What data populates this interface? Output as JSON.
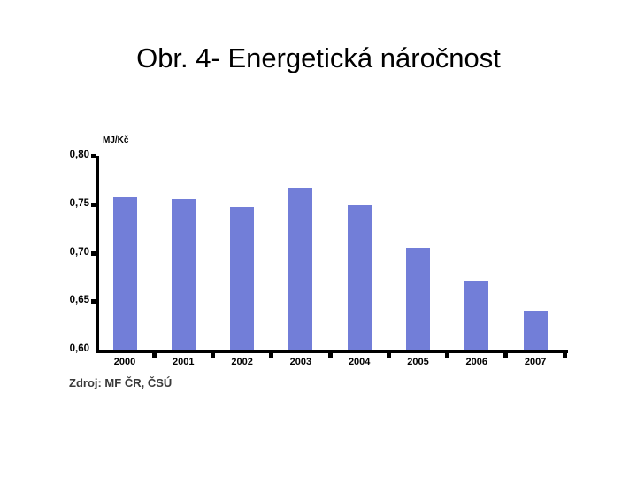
{
  "slide": {
    "title": "Obr. 4- Energetická náročnost",
    "source": "Zdroj: MF ČR, ČSÚ"
  },
  "chart_data": {
    "type": "bar",
    "title": "",
    "xlabel": "",
    "ylabel": "MJ/Kč",
    "categories": [
      "2000",
      "2001",
      "2002",
      "2003",
      "2004",
      "2005",
      "2006",
      "2007"
    ],
    "values": [
      0.757,
      0.755,
      0.747,
      0.767,
      0.749,
      0.705,
      0.67,
      0.64
    ],
    "ylim": [
      0.6,
      0.8
    ],
    "yticks": [
      {
        "value": 0.8,
        "label": "0,80"
      },
      {
        "value": 0.75,
        "label": "0,75"
      },
      {
        "value": 0.7,
        "label": "0,70"
      },
      {
        "value": 0.65,
        "label": "0,65"
      },
      {
        "value": 0.6,
        "label": "0,60"
      }
    ],
    "bar_color": "#727ed8",
    "axis_color": "#000000",
    "grid": false,
    "legend_position": "none"
  }
}
